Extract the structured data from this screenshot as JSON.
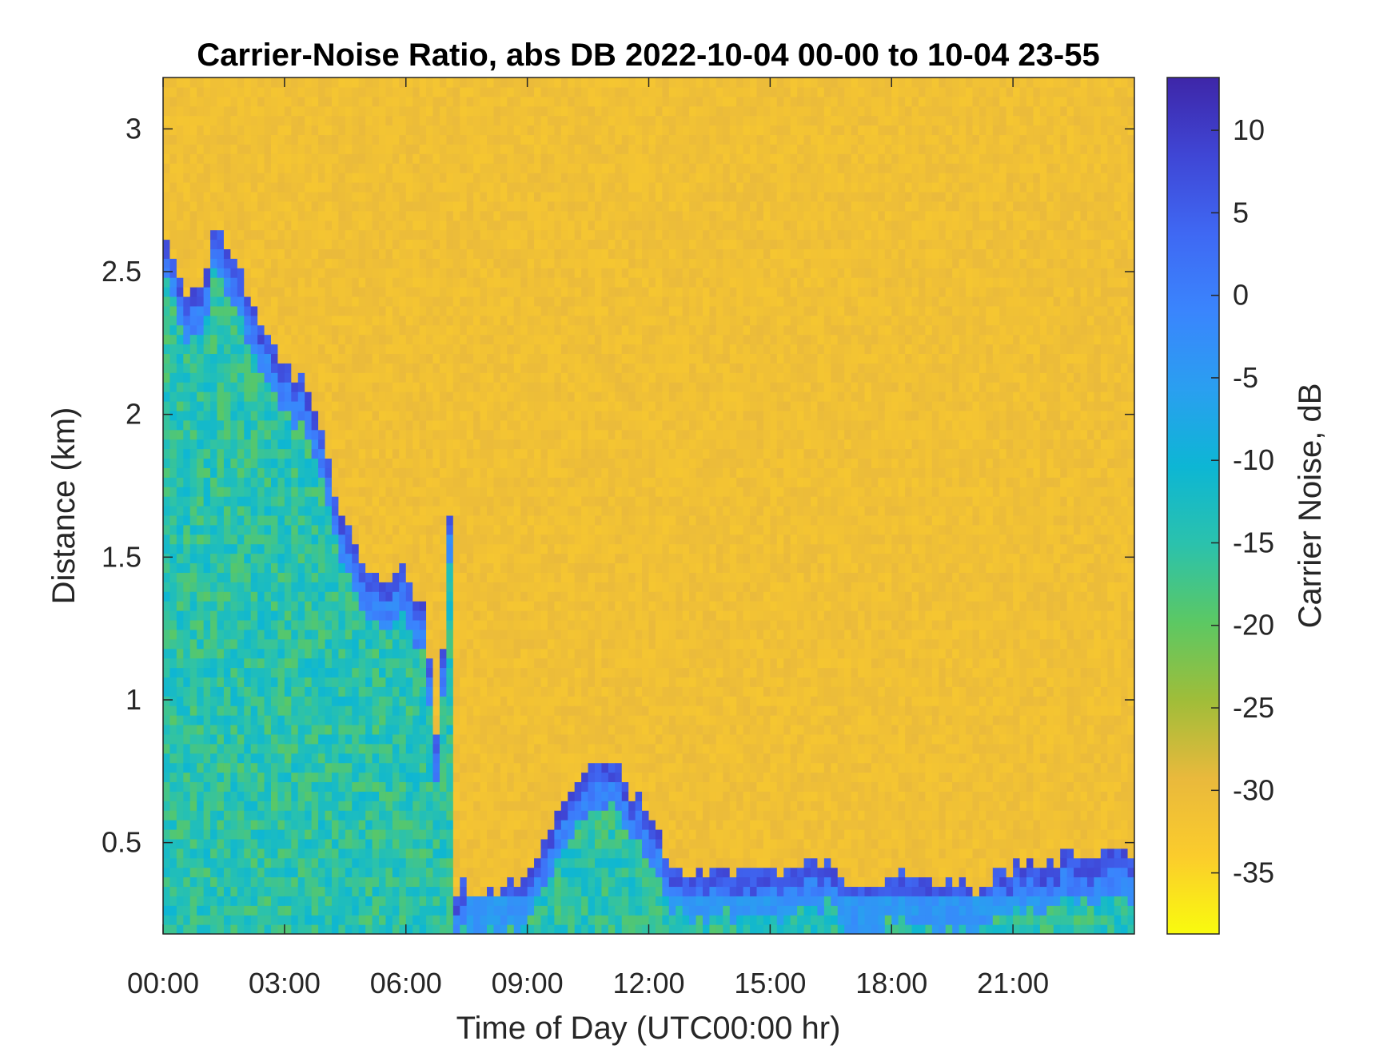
{
  "chart_data": {
    "type": "heatmap",
    "title": "Carrier-Noise Ratio, abs DB 2022-10-04 00-00 to 10-04 23-55",
    "xlabel": "Time of Day (UTC00:00 hr)",
    "ylabel": "Distance (km)",
    "x_ticks": [
      "00:00",
      "03:00",
      "06:00",
      "09:00",
      "12:00",
      "15:00",
      "18:00",
      "21:00"
    ],
    "x_tick_hours": [
      0,
      3,
      6,
      9,
      12,
      15,
      18,
      21
    ],
    "xlim_hours": [
      0,
      24
    ],
    "y_ticks": [
      "0.5",
      "1",
      "1.5",
      "2",
      "2.5",
      "3"
    ],
    "y_tick_values": [
      0.5,
      1,
      1.5,
      2,
      2.5,
      3
    ],
    "ylim": [
      0.18,
      3.18
    ],
    "background_cnr_db": -31,
    "colorbar": {
      "label": "Carrier Noise, dB",
      "ticks": [
        "10",
        "5",
        "0",
        "-5",
        "-10",
        "-15",
        "-20",
        "-25",
        "-30",
        "-35"
      ],
      "tick_values": [
        10,
        5,
        0,
        -5,
        -10,
        -15,
        -20,
        -25,
        -30,
        -35
      ],
      "clim": [
        -38.7,
        13.2
      ],
      "colormap": "parula",
      "stops": [
        "#f9fb0e",
        "#fbcc2c",
        "#e9b93c",
        "#a0bd39",
        "#5cc863",
        "#2bc2ac",
        "#0db6d4",
        "#2a9ff0",
        "#3a85fd",
        "#3f68f3",
        "#3f46d5",
        "#3e26a8"
      ]
    },
    "signal_top_km": [
      {
        "hour": 0.0,
        "km": 2.65
      },
      {
        "hour": 0.5,
        "km": 2.45
      },
      {
        "hour": 1.0,
        "km": 2.45
      },
      {
        "hour": 1.3,
        "km": 2.7
      },
      {
        "hour": 2.0,
        "km": 2.45
      },
      {
        "hour": 2.5,
        "km": 2.3
      },
      {
        "hour": 3.0,
        "km": 2.15
      },
      {
        "hour": 3.5,
        "km": 2.15
      },
      {
        "hour": 4.0,
        "km": 1.9
      },
      {
        "hour": 4.5,
        "km": 1.6
      },
      {
        "hour": 5.0,
        "km": 1.45
      },
      {
        "hour": 5.5,
        "km": 1.4
      },
      {
        "hour": 6.0,
        "km": 1.45
      },
      {
        "hour": 6.5,
        "km": 1.3
      },
      {
        "hour": 6.8,
        "km": 0.8
      },
      {
        "hour": 7.1,
        "km": 1.7
      },
      {
        "hour": 7.2,
        "km": 0.35
      },
      {
        "hour": 8.0,
        "km": 0.33
      },
      {
        "hour": 9.0,
        "km": 0.35
      },
      {
        "hour": 9.5,
        "km": 0.55
      },
      {
        "hour": 10.3,
        "km": 0.75
      },
      {
        "hour": 11.0,
        "km": 0.78
      },
      {
        "hour": 11.5,
        "km": 0.7
      },
      {
        "hour": 12.0,
        "km": 0.62
      },
      {
        "hour": 12.5,
        "km": 0.45
      },
      {
        "hour": 13.0,
        "km": 0.4
      },
      {
        "hour": 15.0,
        "km": 0.4
      },
      {
        "hour": 16.5,
        "km": 0.45
      },
      {
        "hour": 17.0,
        "km": 0.3
      },
      {
        "hour": 18.0,
        "km": 0.38
      },
      {
        "hour": 20.0,
        "km": 0.35
      },
      {
        "hour": 21.0,
        "km": 0.42
      },
      {
        "hour": 22.0,
        "km": 0.45
      },
      {
        "hour": 24.0,
        "km": 0.46
      }
    ]
  }
}
